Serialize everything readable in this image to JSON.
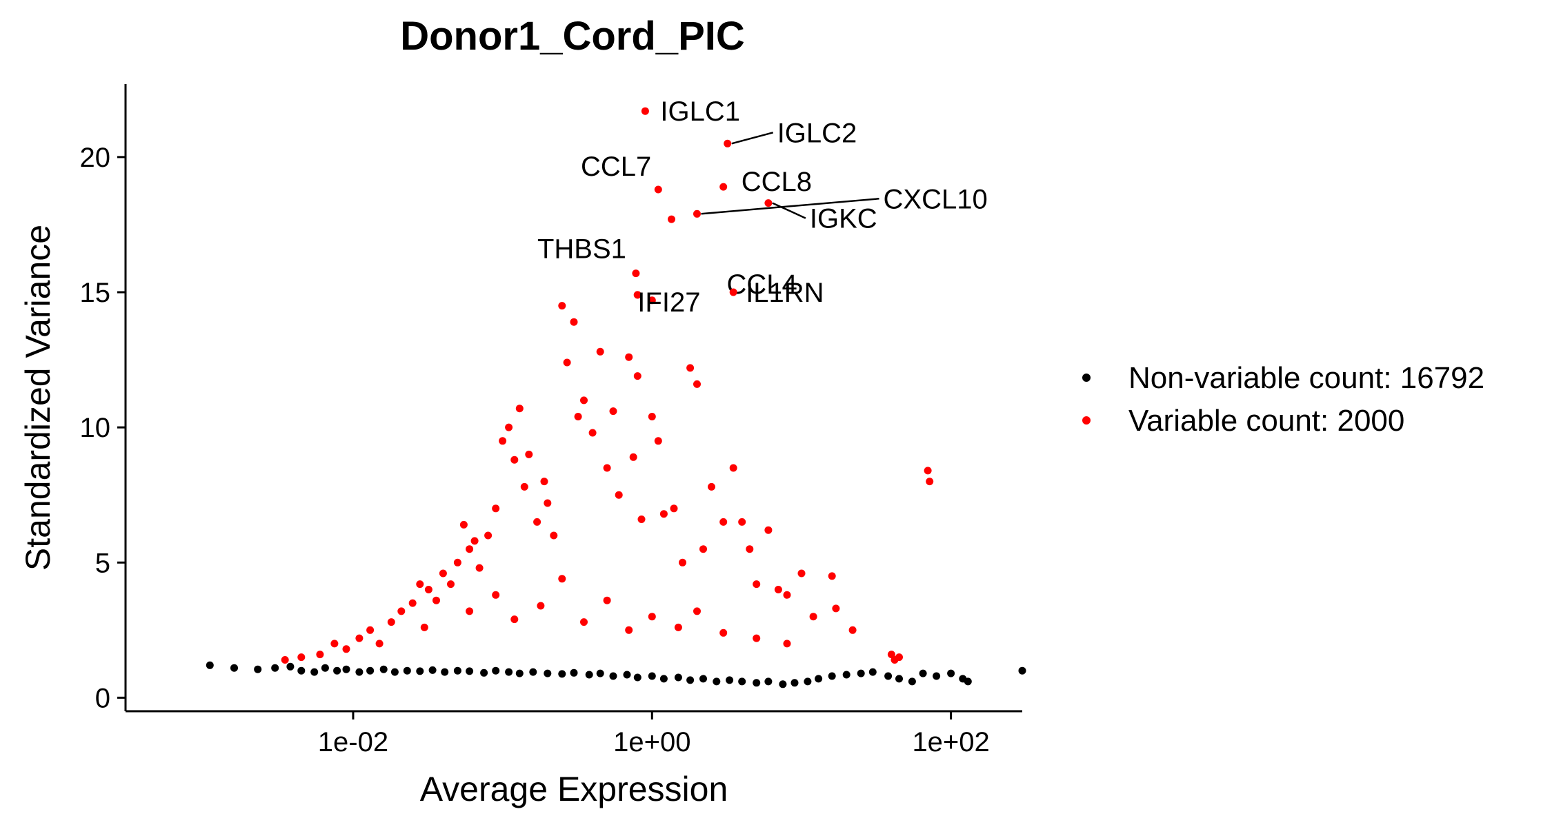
{
  "chart_data": {
    "type": "scatter",
    "title": "Donor1_Cord_PIC",
    "xlabel": "Average Expression",
    "ylabel": "Standardized Variance",
    "x_scale": "log10",
    "xlim": [
      0.0003,
      300
    ],
    "ylim": [
      -0.5,
      22.7
    ],
    "x_ticks": [
      {
        "value": 0.01,
        "label": "1e-02"
      },
      {
        "value": 1,
        "label": "1e+00"
      },
      {
        "value": 100,
        "label": "1e+02"
      }
    ],
    "y_ticks": [
      {
        "value": 0,
        "label": "0"
      },
      {
        "value": 5,
        "label": "5"
      },
      {
        "value": 10,
        "label": "10"
      },
      {
        "value": 15,
        "label": "15"
      },
      {
        "value": 20,
        "label": "20"
      }
    ],
    "grid": false,
    "legend_position": "right",
    "series": [
      {
        "name": "Non-variable count: 16792",
        "color": "#000000",
        "count": 16792,
        "points": [
          [
            0.0011,
            1.2
          ],
          [
            0.0016,
            1.1
          ],
          [
            0.0023,
            1.05
          ],
          [
            0.003,
            1.1
          ],
          [
            0.0038,
            1.15
          ],
          [
            0.0045,
            1.0
          ],
          [
            0.0055,
            0.95
          ],
          [
            0.0065,
            1.1
          ],
          [
            0.0078,
            1.0
          ],
          [
            0.009,
            1.05
          ],
          [
            0.011,
            0.95
          ],
          [
            0.013,
            1.0
          ],
          [
            0.016,
            1.05
          ],
          [
            0.019,
            0.95
          ],
          [
            0.023,
            1.0
          ],
          [
            0.028,
            0.98
          ],
          [
            0.034,
            1.02
          ],
          [
            0.041,
            0.95
          ],
          [
            0.05,
            1.0
          ],
          [
            0.06,
            0.98
          ],
          [
            0.075,
            0.92
          ],
          [
            0.09,
            1.0
          ],
          [
            0.11,
            0.95
          ],
          [
            0.13,
            0.9
          ],
          [
            0.16,
            0.95
          ],
          [
            0.2,
            0.9
          ],
          [
            0.25,
            0.88
          ],
          [
            0.3,
            0.92
          ],
          [
            0.38,
            0.85
          ],
          [
            0.45,
            0.9
          ],
          [
            0.55,
            0.8
          ],
          [
            0.68,
            0.85
          ],
          [
            0.8,
            0.75
          ],
          [
            1.0,
            0.8
          ],
          [
            1.2,
            0.7
          ],
          [
            1.5,
            0.75
          ],
          [
            1.8,
            0.65
          ],
          [
            2.2,
            0.7
          ],
          [
            2.7,
            0.6
          ],
          [
            3.3,
            0.65
          ],
          [
            4.0,
            0.6
          ],
          [
            5.0,
            0.55
          ],
          [
            6.0,
            0.6
          ],
          [
            7.5,
            0.5
          ],
          [
            9.0,
            0.55
          ],
          [
            11.0,
            0.6
          ],
          [
            13.0,
            0.7
          ],
          [
            16.0,
            0.8
          ],
          [
            20.0,
            0.85
          ],
          [
            25.0,
            0.9
          ],
          [
            30.0,
            0.95
          ],
          [
            38.0,
            0.8
          ],
          [
            45.0,
            0.7
          ],
          [
            55.0,
            0.6
          ],
          [
            65.0,
            0.9
          ],
          [
            80.0,
            0.8
          ],
          [
            100.0,
            0.9
          ],
          [
            120.0,
            0.7
          ],
          [
            130.0,
            0.6
          ],
          [
            300.0,
            1.0
          ]
        ]
      },
      {
        "name": "Variable count: 2000",
        "color": "#ff0000",
        "count": 2000,
        "points": [
          [
            0.0035,
            1.4
          ],
          [
            0.0045,
            1.5
          ],
          [
            0.006,
            1.6
          ],
          [
            0.0075,
            2.0
          ],
          [
            0.009,
            1.8
          ],
          [
            0.011,
            2.2
          ],
          [
            0.013,
            2.5
          ],
          [
            0.015,
            2.0
          ],
          [
            0.018,
            2.8
          ],
          [
            0.021,
            3.2
          ],
          [
            0.025,
            3.5
          ],
          [
            0.028,
            4.2
          ],
          [
            0.032,
            4.0
          ],
          [
            0.036,
            3.6
          ],
          [
            0.04,
            4.6
          ],
          [
            0.045,
            4.2
          ],
          [
            0.05,
            5.0
          ],
          [
            0.055,
            6.4
          ],
          [
            0.06,
            5.5
          ],
          [
            0.065,
            5.8
          ],
          [
            0.07,
            4.8
          ],
          [
            0.08,
            6.0
          ],
          [
            0.09,
            7.0
          ],
          [
            0.1,
            9.5
          ],
          [
            0.11,
            10.0
          ],
          [
            0.12,
            8.8
          ],
          [
            0.13,
            10.7
          ],
          [
            0.14,
            7.8
          ],
          [
            0.15,
            9.0
          ],
          [
            0.17,
            6.5
          ],
          [
            0.19,
            8.0
          ],
          [
            0.2,
            7.2
          ],
          [
            0.22,
            6.0
          ],
          [
            0.25,
            14.5
          ],
          [
            0.27,
            12.4
          ],
          [
            0.3,
            13.9
          ],
          [
            0.32,
            10.4
          ],
          [
            0.35,
            11.0
          ],
          [
            0.4,
            9.8
          ],
          [
            0.45,
            12.8
          ],
          [
            0.5,
            8.5
          ],
          [
            0.55,
            10.6
          ],
          [
            0.6,
            7.5
          ],
          [
            0.7,
            12.6
          ],
          [
            0.75,
            8.9
          ],
          [
            0.8,
            11.9
          ],
          [
            0.85,
            6.6
          ],
          [
            1.0,
            10.4
          ],
          [
            1.1,
            9.5
          ],
          [
            1.2,
            6.8
          ],
          [
            1.4,
            7.0
          ],
          [
            1.6,
            5.0
          ],
          [
            1.8,
            12.2
          ],
          [
            2.0,
            11.6
          ],
          [
            2.2,
            5.5
          ],
          [
            2.5,
            7.8
          ],
          [
            3.0,
            6.5
          ],
          [
            3.5,
            8.5
          ],
          [
            4.0,
            6.5
          ],
          [
            4.5,
            5.5
          ],
          [
            5.0,
            4.2
          ],
          [
            6.0,
            6.2
          ],
          [
            7.0,
            4.0
          ],
          [
            8.0,
            3.8
          ],
          [
            10.0,
            4.6
          ],
          [
            12.0,
            3.0
          ],
          [
            16.0,
            4.5
          ],
          [
            17.0,
            3.3
          ],
          [
            22.0,
            2.5
          ],
          [
            40.0,
            1.6
          ],
          [
            42.0,
            1.4
          ],
          [
            45.0,
            1.5
          ],
          [
            70.0,
            8.4
          ],
          [
            72.0,
            8.0
          ],
          [
            0.03,
            2.6
          ],
          [
            0.06,
            3.2
          ],
          [
            0.09,
            3.8
          ],
          [
            0.12,
            2.9
          ],
          [
            0.18,
            3.4
          ],
          [
            0.25,
            4.4
          ],
          [
            0.35,
            2.8
          ],
          [
            0.5,
            3.6
          ],
          [
            0.7,
            2.5
          ],
          [
            1.0,
            3.0
          ],
          [
            1.5,
            2.6
          ],
          [
            2.0,
            3.2
          ],
          [
            3.0,
            2.4
          ],
          [
            5.0,
            2.2
          ],
          [
            8.0,
            2.0
          ],
          [
            0.8,
            14.9
          ],
          [
            1.0,
            14.7
          ]
        ]
      },
      {
        "name": "",
        "color": "#ff0000",
        "labels": [
          {
            "x": 0.9,
            "y": 21.7,
            "label": "IGLC1"
          },
          {
            "x": 3.2,
            "y": 20.5,
            "label": "IGLC2"
          },
          {
            "x": 1.1,
            "y": 18.8,
            "label": "CCL7"
          },
          {
            "x": 3.0,
            "y": 18.9,
            "label": "CCL8"
          },
          {
            "x": 6.0,
            "y": 18.3,
            "label": "IGKC"
          },
          {
            "x": 2.0,
            "y": 17.9,
            "label": "CXCL10"
          },
          {
            "x": 1.35,
            "y": 17.7,
            "label": "CCL4"
          },
          {
            "x": 0.78,
            "y": 15.7,
            "label": "THBS1"
          },
          {
            "x": 3.5,
            "y": 15.0,
            "label": "IL1RN"
          },
          {
            "x": 0.8,
            "y": 14.9,
            "label": "IFI27"
          }
        ]
      }
    ]
  }
}
